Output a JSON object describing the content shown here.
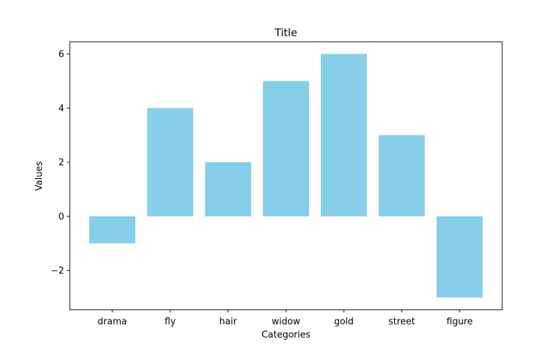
{
  "chart_data": {
    "type": "bar",
    "title": "Title",
    "xlabel": "Categories",
    "ylabel": "Values",
    "categories": [
      "drama",
      "fly",
      "hair",
      "widow",
      "gold",
      "street",
      "figure"
    ],
    "values": [
      -1,
      4,
      2,
      5,
      6,
      3,
      -3
    ],
    "ylim": [
      -3.45,
      6.45
    ],
    "yticks": [
      -2,
      0,
      2,
      4,
      6
    ],
    "ytick_labels": [
      "−2",
      "0",
      "2",
      "4",
      "6"
    ],
    "grid": false,
    "legend": "none",
    "bar_color": "#87ceeb"
  }
}
